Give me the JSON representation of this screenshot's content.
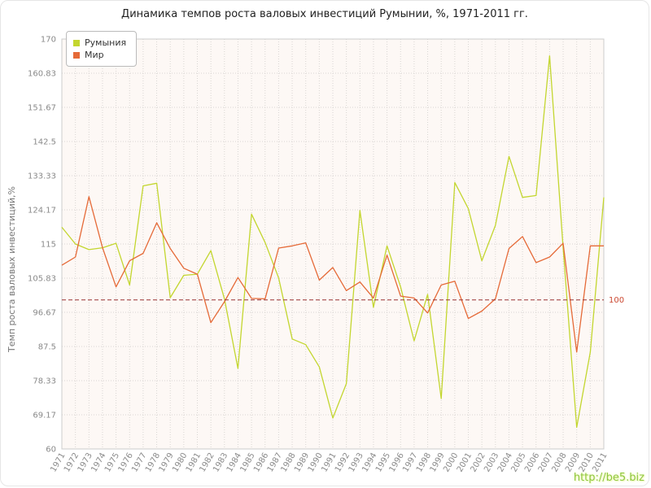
{
  "chart_data": {
    "type": "line",
    "title": "Динамика темпов роста валовых инвестиций Румынии, %, 1971-2011 гг.",
    "ylabel": "Темп роста валовых инвестиций,%",
    "ylim": [
      60,
      170
    ],
    "yticks": [
      "60",
      "69.17",
      "78.33",
      "87.5",
      "96.67",
      "105.83",
      "115",
      "124.17",
      "133.33",
      "142.5",
      "151.67",
      "160.83",
      "170"
    ],
    "grid": true,
    "legend_position": "top-left",
    "x": [
      1971,
      1972,
      1973,
      1974,
      1975,
      1976,
      1977,
      1978,
      1979,
      1980,
      1981,
      1982,
      1983,
      1984,
      1985,
      1986,
      1987,
      1988,
      1989,
      1990,
      1991,
      1992,
      1993,
      1994,
      1995,
      1996,
      1997,
      1998,
      1999,
      2000,
      2001,
      2002,
      2003,
      2004,
      2005,
      2006,
      2007,
      2008,
      2009,
      2010,
      2011
    ],
    "series": [
      {
        "id": "romania",
        "name": "Румыния",
        "color": "#c3d62f",
        "values": [
          119.5,
          115,
          113.5,
          114,
          115.2,
          104,
          130.6,
          131.3,
          100.6,
          106.6,
          106.9,
          113.2,
          100.3,
          81.6,
          123,
          115.4,
          105.9,
          89.5,
          88,
          82,
          68.3,
          77.5,
          124,
          98,
          114.5,
          103.5,
          89,
          101.5,
          73.5,
          131.5,
          124.5,
          110.5,
          120,
          138.5,
          127.5,
          128,
          165.5,
          114,
          65.8,
          86,
          127.5
        ]
      },
      {
        "id": "world",
        "name": "Мир",
        "color": "#e56a38",
        "values": [
          109.3,
          111.5,
          127.7,
          114,
          103.5,
          110.5,
          112.5,
          120.7,
          113.8,
          108.5,
          106.9,
          93.9,
          99.5,
          106,
          100.4,
          100.3,
          113.9,
          114.5,
          115.3,
          105.3,
          108.7,
          102.5,
          104.8,
          100.5,
          112,
          101,
          100.5,
          96.5,
          104,
          105,
          95,
          97,
          100.3,
          113.8,
          117,
          110,
          111.5,
          115.2,
          86,
          114.5,
          114.5
        ]
      }
    ],
    "reference_line": {
      "value": 100,
      "label": "100"
    },
    "watermark": "http://be5.biz",
    "colors": {
      "plot_bg": "#fdf8f5",
      "grid": "#d9d5d2",
      "axis_text": "#8a8a8a",
      "border": "#cccccc",
      "title": "#222222",
      "ref_line": "#993333",
      "ref_label": "#cc4a33",
      "watermark": "#8dc63f"
    }
  }
}
